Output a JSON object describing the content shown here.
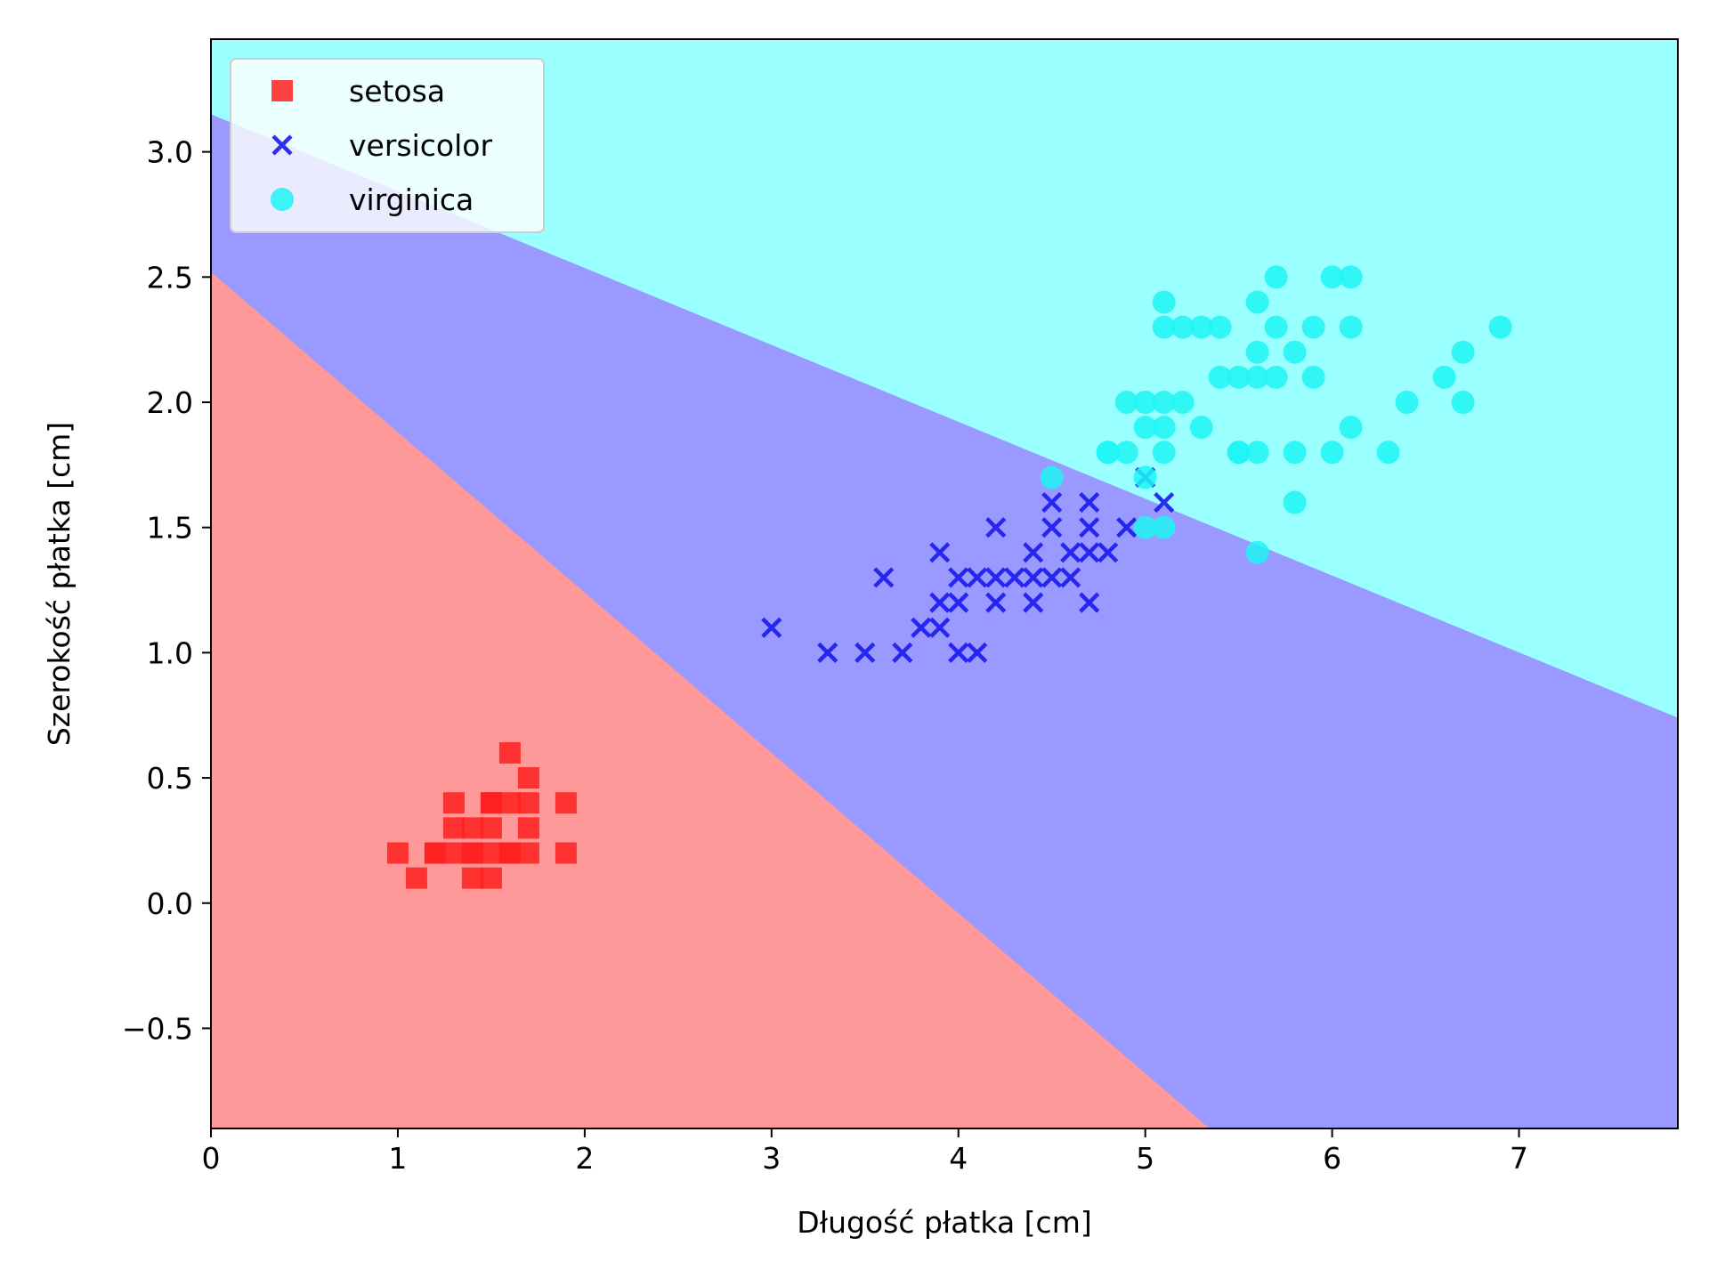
{
  "chart_data": {
    "type": "scatter",
    "title": "",
    "xlabel": "Długość płatka [cm]",
    "ylabel": "Szerokość płatka [cm]",
    "xlim": [
      0,
      7.85
    ],
    "ylim": [
      -0.9,
      3.45
    ],
    "x_ticks": [
      0,
      1,
      2,
      3,
      4,
      5,
      6,
      7
    ],
    "x_tick_labels": [
      "0",
      "1",
      "2",
      "3",
      "4",
      "5",
      "6",
      "7"
    ],
    "y_ticks": [
      -0.5,
      0.0,
      0.5,
      1.0,
      1.5,
      2.0,
      2.5,
      3.0
    ],
    "y_tick_labels": [
      "−0.5",
      "0.0",
      "0.5",
      "1.0",
      "1.5",
      "2.0",
      "2.5",
      "3.0"
    ],
    "grid": false,
    "legend_position": "top-left",
    "decision_regions": [
      {
        "class": "setosa",
        "color": "#ff9999"
      },
      {
        "class": "versicolor",
        "color": "#9999ff"
      },
      {
        "class": "virginica",
        "color": "#99ffff"
      }
    ],
    "series": [
      {
        "name": "setosa",
        "marker": "square",
        "color": "#ff2020",
        "x": [
          1.0,
          1.1,
          1.2,
          1.2,
          1.3,
          1.3,
          1.3,
          1.4,
          1.4,
          1.4,
          1.4,
          1.5,
          1.5,
          1.5,
          1.5,
          1.5,
          1.6,
          1.6,
          1.6,
          1.6,
          1.7,
          1.7,
          1.7,
          1.7,
          1.9,
          1.9
        ],
        "y": [
          0.2,
          0.1,
          0.2,
          0.2,
          0.2,
          0.3,
          0.4,
          0.1,
          0.2,
          0.3,
          0.2,
          0.1,
          0.2,
          0.3,
          0.4,
          0.4,
          0.2,
          0.4,
          0.6,
          0.2,
          0.2,
          0.3,
          0.4,
          0.5,
          0.2,
          0.4
        ]
      },
      {
        "name": "versicolor",
        "marker": "x",
        "color": "#1a1aee",
        "x": [
          3.0,
          3.3,
          3.5,
          3.6,
          3.7,
          3.8,
          3.9,
          3.9,
          3.9,
          4.0,
          4.0,
          4.0,
          4.1,
          4.1,
          4.2,
          4.2,
          4.2,
          4.3,
          4.4,
          4.4,
          4.4,
          4.5,
          4.5,
          4.5,
          4.6,
          4.6,
          4.7,
          4.7,
          4.7,
          4.7,
          4.8,
          4.9,
          5.0,
          5.1
        ],
        "y": [
          1.1,
          1.0,
          1.0,
          1.3,
          1.0,
          1.1,
          1.1,
          1.2,
          1.4,
          1.0,
          1.2,
          1.3,
          1.0,
          1.3,
          1.2,
          1.3,
          1.5,
          1.3,
          1.2,
          1.3,
          1.4,
          1.3,
          1.5,
          1.6,
          1.3,
          1.4,
          1.2,
          1.4,
          1.5,
          1.6,
          1.4,
          1.5,
          1.7,
          1.6
        ]
      },
      {
        "name": "virginica",
        "marker": "circle",
        "color": "#1ff5f5",
        "x": [
          4.5,
          4.8,
          4.8,
          4.9,
          4.9,
          5.0,
          5.0,
          5.0,
          5.0,
          5.1,
          5.1,
          5.1,
          5.1,
          5.1,
          5.1,
          5.2,
          5.2,
          5.3,
          5.3,
          5.4,
          5.4,
          5.5,
          5.5,
          5.5,
          5.6,
          5.6,
          5.6,
          5.6,
          5.6,
          5.7,
          5.7,
          5.7,
          5.8,
          5.8,
          5.8,
          5.9,
          5.9,
          6.0,
          6.0,
          6.1,
          6.1,
          6.1,
          6.3,
          6.4,
          6.6,
          6.7,
          6.7,
          6.9
        ],
        "y": [
          1.7,
          1.8,
          1.8,
          2.0,
          1.8,
          1.5,
          1.9,
          2.0,
          1.7,
          1.5,
          1.8,
          1.9,
          2.0,
          2.3,
          2.4,
          2.0,
          2.3,
          1.9,
          2.3,
          2.1,
          2.3,
          1.8,
          2.1,
          1.8,
          1.4,
          1.8,
          2.1,
          2.2,
          2.4,
          2.1,
          2.3,
          2.5,
          1.6,
          1.8,
          2.2,
          2.1,
          2.3,
          1.8,
          2.5,
          1.9,
          2.3,
          2.5,
          1.8,
          2.0,
          2.1,
          2.0,
          2.2,
          2.3
        ]
      }
    ]
  }
}
